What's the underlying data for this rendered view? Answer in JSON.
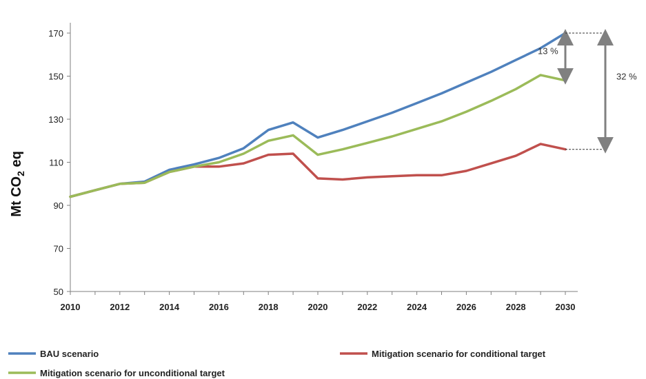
{
  "chart_data": {
    "type": "line",
    "title": "",
    "xlabel": "",
    "ylabel": "Mt CO",
    "ylabel_sub": "2",
    "ylabel_suffix": " eq",
    "xlim": [
      2010,
      2030
    ],
    "ylim": [
      50,
      170
    ],
    "x_ticks": [
      2010,
      2012,
      2014,
      2016,
      2018,
      2020,
      2022,
      2024,
      2026,
      2028,
      2030
    ],
    "y_ticks": [
      50,
      70,
      90,
      110,
      130,
      150,
      170
    ],
    "grid": false,
    "legend_position": "bottom",
    "series": [
      {
        "name": "BAU scenario",
        "color": "#4f81bd",
        "x": [
          2010,
          2011,
          2012,
          2013,
          2014,
          2015,
          2016,
          2017,
          2018,
          2019,
          2020,
          2021,
          2022,
          2023,
          2024,
          2025,
          2026,
          2027,
          2028,
          2029,
          2030
        ],
        "y": [
          94,
          97,
          100,
          101,
          106.5,
          109,
          112,
          116.5,
          125,
          128.5,
          121.5,
          125,
          129,
          133,
          137.5,
          142,
          147,
          152,
          157.5,
          163,
          170
        ]
      },
      {
        "name": "Mitigation scenario for conditional target",
        "color": "#c0504d",
        "x": [
          2010,
          2011,
          2012,
          2013,
          2014,
          2015,
          2016,
          2017,
          2018,
          2019,
          2020,
          2021,
          2022,
          2023,
          2024,
          2025,
          2026,
          2027,
          2028,
          2029,
          2030
        ],
        "y": [
          94,
          97,
          100,
          100.5,
          105.5,
          108,
          108,
          109.5,
          113.5,
          114,
          102.5,
          102,
          103,
          103.5,
          104,
          104,
          106,
          109.5,
          113,
          118.5,
          116
        ]
      },
      {
        "name": "Mitigation scenario for unconditional target",
        "color": "#9bbb59",
        "x": [
          2010,
          2011,
          2012,
          2013,
          2014,
          2015,
          2016,
          2017,
          2018,
          2019,
          2020,
          2021,
          2022,
          2023,
          2024,
          2025,
          2026,
          2027,
          2028,
          2029,
          2030
        ],
        "y": [
          94,
          97,
          100,
          100.5,
          105.5,
          108,
          110,
          114,
          120,
          122.5,
          113.5,
          116,
          119,
          122,
          125.5,
          129,
          133.5,
          138.5,
          144,
          150.5,
          148
        ]
      }
    ],
    "annotations": [
      {
        "text": "13 %",
        "from_series": "BAU scenario",
        "to_series": "Mitigation scenario for unconditional target",
        "at_x": 2030
      },
      {
        "text": "32 %",
        "from_series": "BAU scenario",
        "to_series": "Mitigation scenario for conditional target",
        "at_x": 2030
      }
    ],
    "annotation_color": "#808080"
  }
}
